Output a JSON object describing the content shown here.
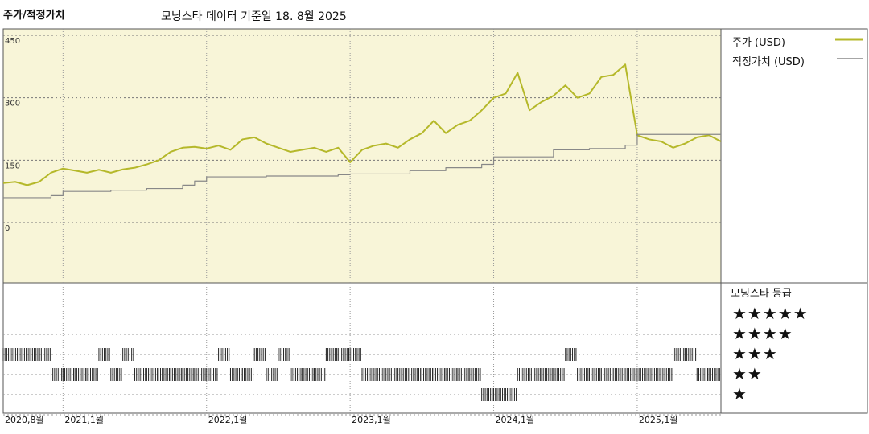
{
  "header": {
    "title": "주가/적정가치",
    "subtitle": "모닝스타 데이터 기준일 18. 8월 2025"
  },
  "legend": {
    "price_label": "주가 (USD)",
    "fair_label": "적정가치 (USD)"
  },
  "rating": {
    "title": "모닝스타 등급",
    "levels": [
      "★★★★★",
      "★★★★",
      "★★★",
      "★★",
      "★"
    ]
  },
  "colors": {
    "price": "#b5b82a",
    "fair": "#888888",
    "plot_bg": "#f8f5d8",
    "bar": "#222222"
  },
  "chart_data": {
    "type": "line",
    "title": "주가/적정가치",
    "subtitle": "모닝스타 데이터 기준일 18. 8월 2025",
    "ylim": [
      0,
      450
    ],
    "yticks": [
      0,
      150,
      300,
      450
    ],
    "xlim": [
      "2020-08",
      "2025-08"
    ],
    "xticks": [
      {
        "date": "2020-08",
        "label": "2020,8월"
      },
      {
        "date": "2021-01",
        "label": "2021,1월"
      },
      {
        "date": "2022-01",
        "label": "2022,1월"
      },
      {
        "date": "2023-01",
        "label": "2023,1월"
      },
      {
        "date": "2024-01",
        "label": "2024,1월"
      },
      {
        "date": "2025-01",
        "label": "2025,1월"
      }
    ],
    "grid": true,
    "legend_position": "right",
    "series": [
      {
        "name": "주가 (USD)",
        "step": false,
        "x": [
          "2020-08",
          "2020-09",
          "2020-10",
          "2020-11",
          "2020-12",
          "2021-01",
          "2021-02",
          "2021-03",
          "2021-04",
          "2021-05",
          "2021-06",
          "2021-07",
          "2021-08",
          "2021-09",
          "2021-10",
          "2021-11",
          "2021-12",
          "2022-01",
          "2022-02",
          "2022-03",
          "2022-04",
          "2022-05",
          "2022-06",
          "2022-07",
          "2022-08",
          "2022-09",
          "2022-10",
          "2022-11",
          "2022-12",
          "2023-01",
          "2023-02",
          "2023-03",
          "2023-04",
          "2023-05",
          "2023-06",
          "2023-07",
          "2023-08",
          "2023-09",
          "2023-10",
          "2023-11",
          "2023-12",
          "2024-01",
          "2024-02",
          "2024-03",
          "2024-04",
          "2024-05",
          "2024-06",
          "2024-07",
          "2024-08",
          "2024-09",
          "2024-10",
          "2024-11",
          "2024-12",
          "2025-01",
          "2025-02",
          "2025-03",
          "2025-04",
          "2025-05",
          "2025-06",
          "2025-07",
          "2025-08"
        ],
        "y": [
          95,
          98,
          90,
          98,
          120,
          130,
          125,
          120,
          127,
          120,
          128,
          132,
          140,
          150,
          170,
          180,
          182,
          178,
          185,
          175,
          200,
          205,
          190,
          180,
          170,
          175,
          180,
          170,
          180,
          145,
          175,
          185,
          190,
          180,
          200,
          215,
          245,
          215,
          235,
          245,
          270,
          300,
          310,
          360,
          270,
          290,
          305,
          330,
          300,
          310,
          350,
          355,
          380,
          210,
          200,
          195,
          180,
          190,
          205,
          210,
          195
        ]
      },
      {
        "name": "적정가치 (USD)",
        "step": true,
        "x": [
          "2020-08",
          "2020-12",
          "2021-01",
          "2021-05",
          "2021-08",
          "2021-11",
          "2021-12",
          "2022-01",
          "2022-06",
          "2022-12",
          "2023-01",
          "2023-06",
          "2023-09",
          "2023-12",
          "2024-01",
          "2024-06",
          "2024-09",
          "2024-12",
          "2025-01",
          "2025-08"
        ],
        "y": [
          60,
          65,
          75,
          78,
          82,
          90,
          100,
          110,
          112,
          115,
          117,
          125,
          132,
          140,
          158,
          175,
          178,
          186,
          212,
          212
        ]
      }
    ],
    "rating_history": {
      "x": [
        "2020-08",
        "2020-10",
        "2020-12",
        "2021-01",
        "2021-02",
        "2021-03",
        "2021-04",
        "2021-05",
        "2021-06",
        "2021-07",
        "2021-08",
        "2021-09",
        "2021-10",
        "2021-11",
        "2021-12",
        "2022-01",
        "2022-02",
        "2022-03",
        "2022-04",
        "2022-05",
        "2022-06",
        "2022-07",
        "2022-08",
        "2022-09",
        "2022-10",
        "2022-11",
        "2022-12",
        "2023-01",
        "2023-02",
        "2023-03",
        "2023-04",
        "2023-05",
        "2023-06",
        "2023-07",
        "2023-08",
        "2023-09",
        "2023-10",
        "2023-11",
        "2023-12",
        "2024-01",
        "2024-02",
        "2024-03",
        "2024-04",
        "2024-05",
        "2024-06",
        "2024-07",
        "2024-08",
        "2024-09",
        "2024-10",
        "2024-11",
        "2024-12",
        "2025-01",
        "2025-02",
        "2025-03",
        "2025-04",
        "2025-05",
        "2025-06",
        "2025-07",
        "2025-08"
      ],
      "stars": [
        4,
        4,
        3,
        3,
        3,
        3,
        4,
        3,
        4,
        3,
        3,
        3,
        3,
        3,
        3,
        3,
        4,
        3,
        3,
        4,
        3,
        4,
        3,
        3,
        3,
        4,
        4,
        4,
        3,
        3,
        3,
        3,
        3,
        3,
        3,
        3,
        3,
        3,
        2,
        2,
        2,
        3,
        3,
        3,
        3,
        4,
        3,
        3,
        3,
        3,
        3,
        3,
        3,
        3,
        4,
        4,
        3,
        3,
        4
      ]
    }
  }
}
